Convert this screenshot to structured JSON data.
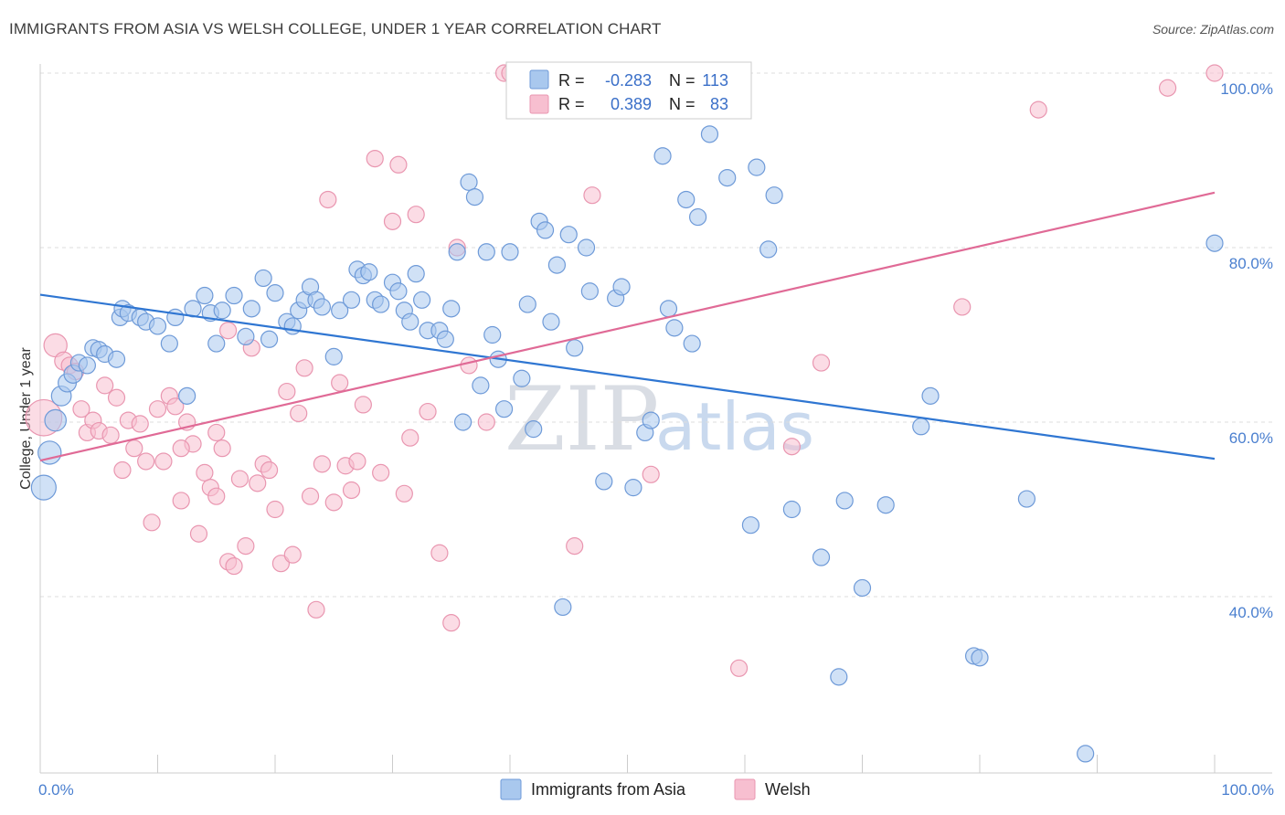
{
  "header": {
    "title": "IMMIGRANTS FROM ASIA VS WELSH COLLEGE, UNDER 1 YEAR CORRELATION CHART",
    "source": "Source: ZipAtlas.com"
  },
  "watermark": {
    "zip": "ZIP",
    "atlas": "atlas"
  },
  "legend_top": {
    "rows": [
      {
        "r_label": "R =",
        "r_value": "-0.283",
        "n_label": "N =",
        "n_value": "113"
      },
      {
        "r_label": "R =",
        "r_value": "0.389",
        "n_label": "N =",
        "n_value": "83"
      }
    ]
  },
  "legend_bottom": {
    "items": [
      {
        "label": "Immigrants from Asia"
      },
      {
        "label": "Welsh"
      }
    ]
  },
  "colors": {
    "blue_fill": "#a9c8ee",
    "blue_stroke": "#6e9ad8",
    "blue_line": "#2f76d2",
    "pink_fill": "#f7bfd0",
    "pink_stroke": "#e996b0",
    "pink_line": "#e06a96",
    "grid": "#dddddd"
  },
  "chart_data": {
    "type": "scatter",
    "title": "IMMIGRANTS FROM ASIA VS WELSH COLLEGE, UNDER 1 YEAR CORRELATION CHART",
    "xlabel": "",
    "ylabel": "College, Under 1 year",
    "xlim": [
      0,
      100
    ],
    "ylim": [
      20,
      102
    ],
    "x_tick_labels": [
      "0.0%",
      "100.0%"
    ],
    "y_ticks": [
      40,
      60,
      80,
      100
    ],
    "y_tick_labels": [
      "40.0%",
      "60.0%",
      "80.0%",
      "100.0%"
    ],
    "grid": "horizontal dashed",
    "legend_placement": "top-center",
    "series": [
      {
        "name": "Immigrants from Asia",
        "r": -0.283,
        "n": 113,
        "trend": {
          "x": [
            0,
            100
          ],
          "y": [
            74.6,
            55.8
          ]
        },
        "points": [
          [
            0.3,
            52.5,
            1.5
          ],
          [
            0.8,
            56.5,
            1.4
          ],
          [
            1.3,
            60.2,
            1.3
          ],
          [
            1.8,
            63.0,
            1.2
          ],
          [
            2.3,
            64.5,
            1.1
          ],
          [
            2.8,
            65.5,
            1.1
          ],
          [
            3.3,
            66.8,
            1.0
          ],
          [
            4.0,
            66.5,
            1.0
          ],
          [
            4.5,
            68.5,
            1.0
          ],
          [
            5.0,
            68.3,
            1.0
          ],
          [
            5.5,
            67.8,
            1.0
          ],
          [
            6.5,
            67.2,
            1.0
          ],
          [
            6.8,
            72.0,
            1.0
          ],
          [
            7.0,
            73.0,
            1.0
          ],
          [
            7.5,
            72.5,
            1.0
          ],
          [
            8.5,
            72.0,
            1.0
          ],
          [
            9.0,
            71.5,
            1.0
          ],
          [
            10.0,
            71.0,
            1.0
          ],
          [
            11.0,
            69.0,
            1.0
          ],
          [
            11.5,
            72.0,
            1.0
          ],
          [
            12.5,
            63.0,
            1.0
          ],
          [
            13.0,
            73.0,
            1.0
          ],
          [
            14.0,
            74.5,
            1.0
          ],
          [
            14.5,
            72.5,
            1.0
          ],
          [
            15.0,
            69.0,
            1.0
          ],
          [
            15.5,
            72.8,
            1.0
          ],
          [
            16.5,
            74.5,
            1.0
          ],
          [
            17.5,
            69.8,
            1.0
          ],
          [
            18.0,
            73.0,
            1.0
          ],
          [
            19.0,
            76.5,
            1.0
          ],
          [
            19.5,
            69.5,
            1.0
          ],
          [
            20.0,
            74.8,
            1.0
          ],
          [
            21.0,
            71.5,
            1.0
          ],
          [
            21.5,
            71.0,
            1.0
          ],
          [
            22.0,
            72.8,
            1.0
          ],
          [
            22.5,
            74.0,
            1.0
          ],
          [
            23.0,
            75.5,
            1.0
          ],
          [
            23.5,
            74.0,
            1.0
          ],
          [
            24.0,
            73.2,
            1.0
          ],
          [
            25.0,
            67.5,
            1.0
          ],
          [
            25.5,
            72.8,
            1.0
          ],
          [
            26.5,
            74.0,
            1.0
          ],
          [
            27.0,
            77.5,
            1.0
          ],
          [
            27.5,
            76.8,
            1.0
          ],
          [
            28.0,
            77.2,
            1.0
          ],
          [
            28.5,
            74.0,
            1.0
          ],
          [
            29.0,
            73.5,
            1.0
          ],
          [
            30.0,
            76.0,
            1.0
          ],
          [
            30.5,
            75.0,
            1.0
          ],
          [
            31.0,
            72.8,
            1.0
          ],
          [
            31.5,
            71.5,
            1.0
          ],
          [
            32.0,
            77.0,
            1.0
          ],
          [
            32.5,
            74.0,
            1.0
          ],
          [
            33.0,
            70.5,
            1.0
          ],
          [
            34.0,
            70.5,
            1.0
          ],
          [
            34.5,
            69.5,
            1.0
          ],
          [
            35.0,
            73.0,
            1.0
          ],
          [
            35.5,
            79.5,
            1.0
          ],
          [
            36.0,
            60.0,
            1.0
          ],
          [
            36.5,
            87.5,
            1.0
          ],
          [
            37.0,
            85.8,
            1.0
          ],
          [
            37.5,
            64.2,
            1.0
          ],
          [
            38.0,
            79.5,
            1.0
          ],
          [
            38.5,
            70.0,
            1.0
          ],
          [
            39.0,
            67.2,
            1.0
          ],
          [
            39.5,
            61.5,
            1.0
          ],
          [
            40.0,
            79.5,
            1.0
          ],
          [
            41.0,
            65.0,
            1.0
          ],
          [
            41.5,
            73.5,
            1.0
          ],
          [
            42.0,
            59.2,
            1.0
          ],
          [
            42.5,
            83.0,
            1.0
          ],
          [
            43.0,
            82.0,
            1.0
          ],
          [
            43.5,
            71.5,
            1.0
          ],
          [
            44.0,
            78.0,
            1.0
          ],
          [
            45.0,
            81.5,
            1.0
          ],
          [
            45.5,
            68.5,
            1.0
          ],
          [
            46.5,
            80.0,
            1.0
          ],
          [
            46.8,
            75.0,
            1.0
          ],
          [
            48.0,
            53.2,
            1.0
          ],
          [
            49.0,
            74.2,
            1.0
          ],
          [
            49.5,
            75.5,
            1.0
          ],
          [
            50.5,
            52.5,
            1.0
          ],
          [
            51.5,
            58.8,
            1.0
          ],
          [
            52.0,
            60.2,
            1.0
          ],
          [
            53.0,
            90.5,
            1.0
          ],
          [
            53.5,
            73.0,
            1.0
          ],
          [
            54.0,
            70.8,
            1.0
          ],
          [
            55.0,
            85.5,
            1.0
          ],
          [
            55.5,
            69.0,
            1.0
          ],
          [
            56.0,
            83.5,
            1.0
          ],
          [
            57.0,
            93.0,
            1.0
          ],
          [
            58.5,
            88.0,
            1.0
          ],
          [
            60.5,
            48.2,
            1.0
          ],
          [
            61.0,
            89.2,
            1.0
          ],
          [
            62.0,
            79.8,
            1.0
          ],
          [
            62.5,
            86.0,
            1.0
          ],
          [
            64.0,
            50.0,
            1.0
          ],
          [
            66.5,
            44.5,
            1.0
          ],
          [
            68.0,
            30.8,
            1.0
          ],
          [
            68.5,
            51.0,
            1.0
          ],
          [
            70.0,
            41.0,
            1.0
          ],
          [
            72.0,
            50.5,
            1.0
          ],
          [
            75.0,
            59.5,
            1.0
          ],
          [
            75.8,
            63.0,
            1.0
          ],
          [
            79.5,
            33.2,
            1.0
          ],
          [
            80.0,
            33.0,
            1.0
          ],
          [
            84.0,
            51.2,
            1.0
          ],
          [
            100.0,
            80.5,
            1.0
          ],
          [
            44.5,
            38.8,
            1.0
          ],
          [
            89.0,
            22.0,
            1.0
          ]
        ]
      },
      {
        "name": "Welsh",
        "r": 0.389,
        "n": 83,
        "trend": {
          "x": [
            0,
            100
          ],
          "y": [
            55.6,
            86.3
          ]
        },
        "points": [
          [
            0.3,
            60.5,
            2.2
          ],
          [
            1.3,
            68.8,
            1.4
          ],
          [
            2.0,
            67.0,
            1.1
          ],
          [
            2.5,
            66.5,
            1.0
          ],
          [
            3.0,
            65.8,
            1.0
          ],
          [
            3.5,
            61.5,
            1.0
          ],
          [
            4.0,
            58.8,
            1.0
          ],
          [
            4.5,
            60.2,
            1.0
          ],
          [
            5.0,
            59.0,
            1.0
          ],
          [
            5.5,
            64.2,
            1.0
          ],
          [
            6.0,
            58.5,
            1.0
          ],
          [
            6.5,
            62.8,
            1.0
          ],
          [
            7.0,
            54.5,
            1.0
          ],
          [
            7.5,
            60.2,
            1.0
          ],
          [
            8.0,
            57.0,
            1.0
          ],
          [
            8.5,
            59.8,
            1.0
          ],
          [
            9.0,
            55.5,
            1.0
          ],
          [
            9.5,
            48.5,
            1.0
          ],
          [
            10.0,
            61.5,
            1.0
          ],
          [
            10.5,
            55.5,
            1.0
          ],
          [
            11.0,
            63.0,
            1.0
          ],
          [
            11.5,
            61.8,
            1.0
          ],
          [
            12.0,
            51.0,
            1.0
          ],
          [
            12.5,
            60.0,
            1.0
          ],
          [
            13.0,
            57.5,
            1.0
          ],
          [
            13.5,
            47.2,
            1.0
          ],
          [
            14.0,
            54.2,
            1.0
          ],
          [
            14.5,
            52.5,
            1.0
          ],
          [
            15.0,
            58.8,
            1.0
          ],
          [
            15.5,
            57.0,
            1.0
          ],
          [
            16.0,
            44.0,
            1.0
          ],
          [
            16.5,
            43.5,
            1.0
          ],
          [
            17.0,
            53.5,
            1.0
          ],
          [
            17.5,
            45.8,
            1.0
          ],
          [
            18.0,
            68.5,
            1.0
          ],
          [
            18.5,
            53.0,
            1.0
          ],
          [
            19.0,
            55.2,
            1.0
          ],
          [
            19.5,
            54.5,
            1.0
          ],
          [
            20.0,
            50.0,
            1.0
          ],
          [
            20.5,
            43.8,
            1.0
          ],
          [
            21.0,
            63.5,
            1.0
          ],
          [
            21.5,
            44.8,
            1.0
          ],
          [
            22.0,
            61.0,
            1.0
          ],
          [
            22.5,
            66.2,
            1.0
          ],
          [
            23.0,
            51.5,
            1.0
          ],
          [
            23.5,
            38.5,
            1.0
          ],
          [
            24.0,
            55.2,
            1.0
          ],
          [
            24.5,
            85.5,
            1.0
          ],
          [
            25.0,
            50.8,
            1.0
          ],
          [
            25.5,
            64.5,
            1.0
          ],
          [
            26.0,
            55.0,
            1.0
          ],
          [
            26.5,
            52.2,
            1.0
          ],
          [
            27.0,
            55.5,
            1.0
          ],
          [
            27.5,
            62.0,
            1.0
          ],
          [
            28.5,
            90.2,
            1.0
          ],
          [
            29.0,
            54.2,
            1.0
          ],
          [
            30.0,
            83.0,
            1.0
          ],
          [
            30.5,
            89.5,
            1.0
          ],
          [
            31.0,
            51.8,
            1.0
          ],
          [
            31.5,
            58.2,
            1.0
          ],
          [
            32.0,
            83.8,
            1.0
          ],
          [
            33.0,
            61.2,
            1.0
          ],
          [
            34.0,
            45.0,
            1.0
          ],
          [
            35.0,
            37.0,
            1.0
          ],
          [
            35.5,
            80.0,
            1.0
          ],
          [
            36.5,
            66.5,
            1.0
          ],
          [
            38.0,
            60.0,
            1.0
          ],
          [
            39.5,
            100.0,
            1.0
          ],
          [
            40.0,
            100.0,
            1.0
          ],
          [
            41.0,
            100.0,
            1.0
          ],
          [
            45.5,
            45.8,
            1.0
          ],
          [
            47.0,
            86.0,
            1.0
          ],
          [
            52.0,
            54.0,
            1.0
          ],
          [
            59.5,
            31.8,
            1.0
          ],
          [
            64.0,
            57.2,
            1.0
          ],
          [
            66.5,
            66.8,
            1.0
          ],
          [
            78.5,
            73.2,
            1.0
          ],
          [
            85.0,
            95.8,
            1.0
          ],
          [
            96.0,
            98.3,
            1.0
          ],
          [
            100.0,
            100.0,
            1.0
          ],
          [
            15.0,
            51.5,
            1.0
          ],
          [
            16.0,
            70.5,
            1.0
          ],
          [
            12.0,
            57.0,
            1.0
          ]
        ]
      }
    ]
  }
}
